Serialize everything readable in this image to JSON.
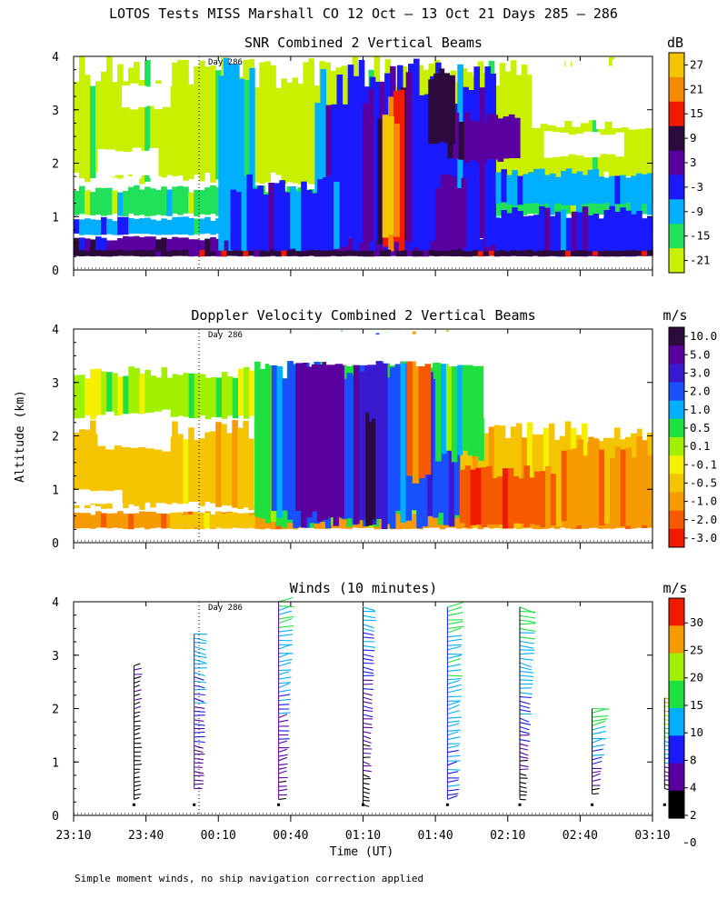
{
  "figure": {
    "title": "LOTOS Tests MISS Marshall CO  12 Oct — 13 Oct 21 Days 285 — 286",
    "ylabel": "Altitude (km)",
    "xlabel": "Time (UT)",
    "day_marker": "Day 286",
    "footnote": "Simple moment winds, no ship navigation correction applied",
    "xticks": [
      "23:10",
      "23:40",
      "00:10",
      "00:40",
      "01:10",
      "01:40",
      "02:10",
      "02:40",
      "03:10"
    ],
    "yticks": [
      "0",
      "1",
      "2",
      "3",
      "4"
    ]
  },
  "chart_data": [
    {
      "type": "heatmap",
      "title": "SNR Combined 2 Vertical Beams",
      "units": "dB",
      "xlabel": "",
      "ylabel": "Altitude (km)",
      "ylim": [
        0,
        4
      ],
      "xlim": [
        "23:10",
        "03:10"
      ],
      "colorbar": {
        "labels": [
          "27",
          "21",
          "15",
          "9",
          "3",
          "-3",
          "-9",
          "-15",
          "-21"
        ],
        "colors": [
          "#f5c400",
          "#f58a00",
          "#f01a00",
          "#2d0a3d",
          "#5a00a0",
          "#1a1aff",
          "#00b0ff",
          "#21e05a",
          "#c8f000"
        ]
      },
      "regions": [
        {
          "t0": 0,
          "t1": 240,
          "z0": 0.25,
          "z1": 0.65,
          "level": 4
        },
        {
          "t0": 0,
          "t1": 240,
          "z0": 0.65,
          "z1": 1.0,
          "level": 6
        },
        {
          "t0": 0,
          "t1": 240,
          "z0": 1.0,
          "z1": 1.6,
          "level": 7
        },
        {
          "t0": 0,
          "t1": 240,
          "z0": 1.6,
          "z1": 4.0,
          "level": 8
        },
        {
          "t0": 60,
          "t1": 75,
          "z0": 0.25,
          "z1": 4.0,
          "level": 6
        },
        {
          "t0": 100,
          "t1": 175,
          "z0": 0.25,
          "z1": 4.0,
          "level": 5
        },
        {
          "t0": 65,
          "t1": 110,
          "z0": 0.25,
          "z1": 1.8,
          "level": 5
        },
        {
          "t0": 120,
          "t1": 140,
          "z0": 0.25,
          "z1": 4.0,
          "level": 4
        },
        {
          "t0": 155,
          "t1": 185,
          "z0": 2.0,
          "z1": 3.0,
          "level": 4
        },
        {
          "t0": 150,
          "t1": 165,
          "z0": 0.3,
          "z1": 1.8,
          "level": 4
        },
        {
          "t0": 147,
          "t1": 158,
          "z0": 2.3,
          "z1": 3.8,
          "level": 3
        },
        {
          "t0": 126,
          "t1": 137,
          "z0": 0.25,
          "z1": 3.5,
          "level": 2
        },
        {
          "t0": 128,
          "t1": 135,
          "z0": 0.6,
          "z1": 3.2,
          "level": 0
        },
        {
          "t0": 175,
          "t1": 240,
          "z0": 0.25,
          "z1": 1.2,
          "level": 5
        },
        {
          "t0": 175,
          "t1": 240,
          "z0": 1.2,
          "z1": 1.9,
          "level": 6
        },
        {
          "t0": 0,
          "t1": 240,
          "z0": 0.25,
          "z1": 0.38,
          "level": 3
        }
      ],
      "blanks": [
        {
          "t0": 10,
          "t1": 35,
          "z0": 1.7,
          "z1": 2.3
        },
        {
          "t0": 190,
          "t1": 240,
          "z0": 2.6,
          "z1": 4.0
        },
        {
          "t0": 195,
          "t1": 228,
          "z0": 2.1,
          "z1": 2.6
        },
        {
          "t0": 20,
          "t1": 40,
          "z0": 3.0,
          "z1": 3.5
        }
      ]
    },
    {
      "type": "heatmap",
      "title": "Doppler Velocity Combined 2 Vertical Beams",
      "units": "m/s",
      "xlabel": "",
      "ylabel": "Altitude (km)",
      "ylim": [
        0,
        4
      ],
      "xlim": [
        "23:10",
        "03:10"
      ],
      "colorbar": {
        "labels": [
          "10.0",
          "5.0",
          "3.0",
          "2.0",
          "1.0",
          "0.5",
          "0.1",
          "-0.1",
          "-0.5",
          "-1.0",
          "-2.0",
          "-3.0"
        ],
        "colors": [
          "#2d0a3d",
          "#5a00a0",
          "#3a1ad0",
          "#1a50ff",
          "#00b0ff",
          "#20e040",
          "#a0f000",
          "#f5f000",
          "#f5c400",
          "#f59a00",
          "#f55a00",
          "#f01a00"
        ]
      },
      "regions": [
        {
          "t0": 0,
          "t1": 240,
          "z0": 0.25,
          "z1": 0.6,
          "level": 9
        },
        {
          "t0": 0,
          "t1": 240,
          "z0": 0.6,
          "z1": 2.3,
          "level": 8
        },
        {
          "t0": 0,
          "t1": 75,
          "z0": 2.3,
          "z1": 3.3,
          "level": 6
        },
        {
          "t0": 75,
          "t1": 160,
          "z0": 0.25,
          "z1": 4.0,
          "level": 5
        },
        {
          "t0": 82,
          "t1": 160,
          "z0": 0.25,
          "z1": 4.0,
          "level": 3
        },
        {
          "t0": 92,
          "t1": 112,
          "z0": 0.25,
          "z1": 4.0,
          "level": 1
        },
        {
          "t0": 116,
          "t1": 130,
          "z0": 0.25,
          "z1": 3.8,
          "level": 2
        },
        {
          "t0": 121,
          "t1": 125,
          "z0": 0.3,
          "z1": 2.8,
          "level": 0
        },
        {
          "t0": 138,
          "t1": 148,
          "z0": 1.0,
          "z1": 4.0,
          "level": 10
        },
        {
          "t0": 150,
          "t1": 170,
          "z0": 1.5,
          "z1": 4.0,
          "level": 5
        },
        {
          "t0": 160,
          "t1": 200,
          "z0": 0.25,
          "z1": 1.5,
          "level": 10
        },
        {
          "t0": 200,
          "t1": 240,
          "z0": 0.25,
          "z1": 2.0,
          "level": 9
        },
        {
          "t0": 40,
          "t1": 75,
          "z0": 0.25,
          "z1": 0.6,
          "level": 8
        }
      ],
      "blanks": [
        {
          "t0": 0,
          "t1": 240,
          "z0": 3.3,
          "z1": 4.0
        },
        {
          "t0": 10,
          "t1": 40,
          "z0": 1.7,
          "z1": 2.5
        },
        {
          "t0": 210,
          "t1": 240,
          "z0": 2.0,
          "z1": 4.0
        },
        {
          "t0": 170,
          "t1": 210,
          "z0": 2.3,
          "z1": 4.0
        },
        {
          "t0": 0,
          "t1": 20,
          "z0": 0.7,
          "z1": 1.0
        }
      ]
    },
    {
      "type": "scatter",
      "title": "Winds (10 minutes)",
      "units": "m/s",
      "xlabel": "Time (UT)",
      "ylabel": "Altitude (km)",
      "ylim": [
        0,
        4
      ],
      "xlim": [
        "23:10",
        "03:10"
      ],
      "colorbar": {
        "labels": [
          "30",
          "25",
          "20",
          "15",
          "10",
          "8",
          "4",
          "2",
          "0"
        ],
        "colors": [
          "#f01a00",
          "#f59a00",
          "#a0f000",
          "#20e040",
          "#00b0ff",
          "#1a1aff",
          "#5a00a0",
          "#000000"
        ]
      },
      "profiles": [
        {
          "time_min": 25,
          "z0": 0.3,
          "z1": 2.8,
          "lo": 2,
          "hi": 4
        },
        {
          "time_min": 50,
          "z0": 0.5,
          "z1": 3.4,
          "lo": 5,
          "hi": 12
        },
        {
          "time_min": 85,
          "z0": 0.3,
          "z1": 4.0,
          "lo": 4,
          "hi": 16
        },
        {
          "time_min": 120,
          "z0": 0.2,
          "z1": 3.9,
          "lo": 2,
          "hi": 12
        },
        {
          "time_min": 155,
          "z0": 0.3,
          "z1": 3.9,
          "lo": 9,
          "hi": 17
        },
        {
          "time_min": 185,
          "z0": 0.3,
          "z1": 3.9,
          "lo": 2,
          "hi": 18
        },
        {
          "time_min": 215,
          "z0": 0.4,
          "z1": 2.0,
          "lo": 3,
          "hi": 18
        },
        {
          "time_min": 245,
          "z0": 0.5,
          "z1": 2.2,
          "lo": 2,
          "hi": 28
        }
      ]
    }
  ]
}
